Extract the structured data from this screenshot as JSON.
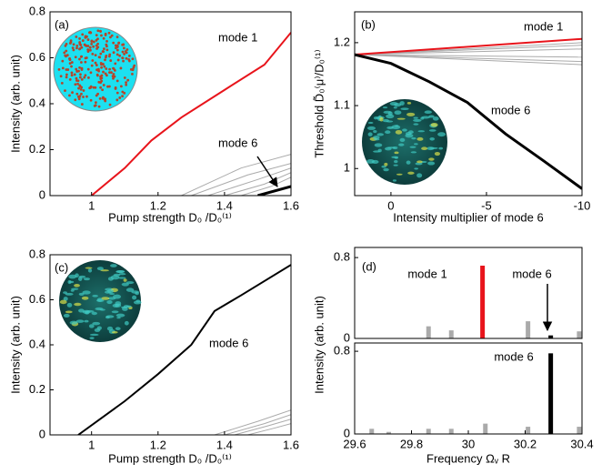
{
  "chart_data": [
    {
      "type": "line",
      "xlabel": "Pump strength D₀ /D₀⁽¹⁾",
      "ylabel": "Intensity (arb. unit)",
      "annotations": [
        "(a)",
        "mode 1",
        "mode 6"
      ],
      "xlim": [
        0.875,
        1.6
      ],
      "xticks": [
        1,
        1.2,
        1.4,
        1.6
      ],
      "ylim": [
        0,
        0.8
      ],
      "yticks": [
        0,
        0.2,
        0.4,
        0.6,
        0.8
      ],
      "series": [
        {
          "color": "#aaaaaa",
          "x": [
            1.27,
            1.45,
            1.6
          ],
          "values": [
            0,
            0.12,
            0.18
          ]
        },
        {
          "color": "#aaaaaa",
          "x": [
            1.3,
            1.47,
            1.6
          ],
          "values": [
            0,
            0.09,
            0.14
          ]
        },
        {
          "color": "#aaaaaa",
          "x": [
            1.35,
            1.5,
            1.6
          ],
          "values": [
            0,
            0.07,
            0.12
          ]
        },
        {
          "color": "#aaaaaa",
          "x": [
            1.4,
            1.52,
            1.6
          ],
          "values": [
            0,
            0.05,
            0.1
          ]
        },
        {
          "color": "#aaaaaa",
          "x": [
            1.45,
            1.54,
            1.6
          ],
          "values": [
            0,
            0.04,
            0.08
          ]
        },
        {
          "name": "mode 1",
          "color": "#e8141b",
          "linewidth": 2,
          "x": [
            1,
            1.1,
            1.18,
            1.27,
            1.4,
            1.52,
            1.6
          ],
          "values": [
            0,
            0.12,
            0.24,
            0.34,
            0.46,
            0.57,
            0.71
          ]
        },
        {
          "name": "mode 6",
          "color": "#000000",
          "linewidth": 3,
          "x": [
            1.5,
            1.6
          ],
          "values": [
            0,
            0.04
          ]
        }
      ]
    },
    {
      "type": "line",
      "xlabel": "Intensity multiplier of mode 6",
      "ylabel": "Threshold D̃₀⁽μ⁾/D₀⁽¹⁾",
      "annotations": [
        "(b)",
        "mode 1",
        "mode 6"
      ],
      "xlim": [
        1.9,
        -10
      ],
      "xticks": [
        0,
        -5,
        -10
      ],
      "ylim": [
        0.957,
        1.249
      ],
      "yticks": [
        1,
        1.1,
        1.2
      ],
      "series": [
        {
          "color": "#aaaaaa",
          "x": [
            1.9,
            -10
          ],
          "values": [
            1.181,
            1.2
          ]
        },
        {
          "color": "#aaaaaa",
          "x": [
            1.9,
            -10
          ],
          "values": [
            1.181,
            1.196
          ]
        },
        {
          "color": "#aaaaaa",
          "x": [
            1.9,
            -10
          ],
          "values": [
            1.181,
            1.19
          ]
        },
        {
          "color": "#aaaaaa",
          "x": [
            1.9,
            -10
          ],
          "values": [
            1.181,
            1.177
          ]
        },
        {
          "color": "#aaaaaa",
          "x": [
            1.9,
            -10
          ],
          "values": [
            1.181,
            1.17
          ]
        },
        {
          "color": "#aaaaaa",
          "x": [
            1.9,
            -10
          ],
          "values": [
            1.181,
            1.165
          ]
        },
        {
          "name": "mode 1",
          "color": "#e8141b",
          "linewidth": 2,
          "x": [
            1.9,
            -10
          ],
          "values": [
            1.181,
            1.206
          ]
        },
        {
          "name": "mode 6",
          "color": "#000000",
          "linewidth": 3,
          "x": [
            1.9,
            0,
            -2,
            -4,
            -6,
            -8,
            -10
          ],
          "values": [
            1.181,
            1.167,
            1.138,
            1.105,
            1.055,
            1.012,
            0.968
          ]
        }
      ]
    },
    {
      "type": "line",
      "xlabel": "Pump strength D₀ /D₀⁽¹⁾",
      "ylabel": "Intensity (arb. unit)",
      "annotations": [
        "(c)",
        "mode 6"
      ],
      "xlim": [
        0.875,
        1.6
      ],
      "xticks": [
        1,
        1.2,
        1.4,
        1.6
      ],
      "ylim": [
        0,
        0.8
      ],
      "yticks": [
        0,
        0.2,
        0.4,
        0.6,
        0.8
      ],
      "series": [
        {
          "color": "#aaaaaa",
          "x": [
            1.37,
            1.5,
            1.6
          ],
          "values": [
            0,
            0.06,
            0.11
          ]
        },
        {
          "color": "#aaaaaa",
          "x": [
            1.4,
            1.52,
            1.6
          ],
          "values": [
            0,
            0.05,
            0.09
          ]
        },
        {
          "color": "#aaaaaa",
          "x": [
            1.43,
            1.53,
            1.6
          ],
          "values": [
            0,
            0.04,
            0.07
          ]
        },
        {
          "color": "#aaaaaa",
          "x": [
            1.47,
            1.55,
            1.6
          ],
          "values": [
            0,
            0.03,
            0.05
          ]
        },
        {
          "name": "mode 6",
          "color": "#000000",
          "linewidth": 2,
          "x": [
            0.96,
            1.1,
            1.2,
            1.3,
            1.37,
            1.45,
            1.6
          ],
          "values": [
            0,
            0.15,
            0.27,
            0.4,
            0.55,
            0.62,
            0.755
          ]
        }
      ]
    },
    {
      "type": "bar",
      "ylabel": "Intensity (arb. unit)",
      "annotations": [
        "(d)",
        "mode 1",
        "mode 6"
      ],
      "xlim": [
        29.6,
        30.4
      ],
      "ylim": [
        0,
        0.9
      ],
      "yticks": [
        0,
        0.8
      ],
      "x": [
        29.86,
        29.94,
        30.05,
        30.21,
        30.29,
        30.39
      ],
      "values": [
        0.12,
        0.08,
        0.72,
        0.17,
        0.03,
        0.07
      ],
      "colors": [
        "#aaaaaa",
        "#aaaaaa",
        "#e8141b",
        "#aaaaaa",
        "#000000",
        "#aaaaaa"
      ]
    },
    {
      "type": "bar",
      "xlabel": "Frequency Ωᵥ R",
      "annotations": [
        "mode 6"
      ],
      "xlim": [
        29.6,
        30.4
      ],
      "xticks": [
        29.6,
        29.8,
        30,
        30.2,
        30.4
      ],
      "ylim": [
        0,
        0.88
      ],
      "yticks": [
        0,
        0.8
      ],
      "x": [
        29.66,
        29.72,
        29.86,
        29.94,
        30.06,
        30.21,
        30.29,
        30.39
      ],
      "values": [
        0.05,
        0.02,
        0.05,
        0.05,
        0.1,
        0.07,
        0.78,
        0.07
      ],
      "colors": [
        "#aaaaaa",
        "#aaaaaa",
        "#aaaaaa",
        "#aaaaaa",
        "#aaaaaa",
        "#aaaaaa",
        "#000000",
        "#aaaaaa"
      ]
    }
  ]
}
